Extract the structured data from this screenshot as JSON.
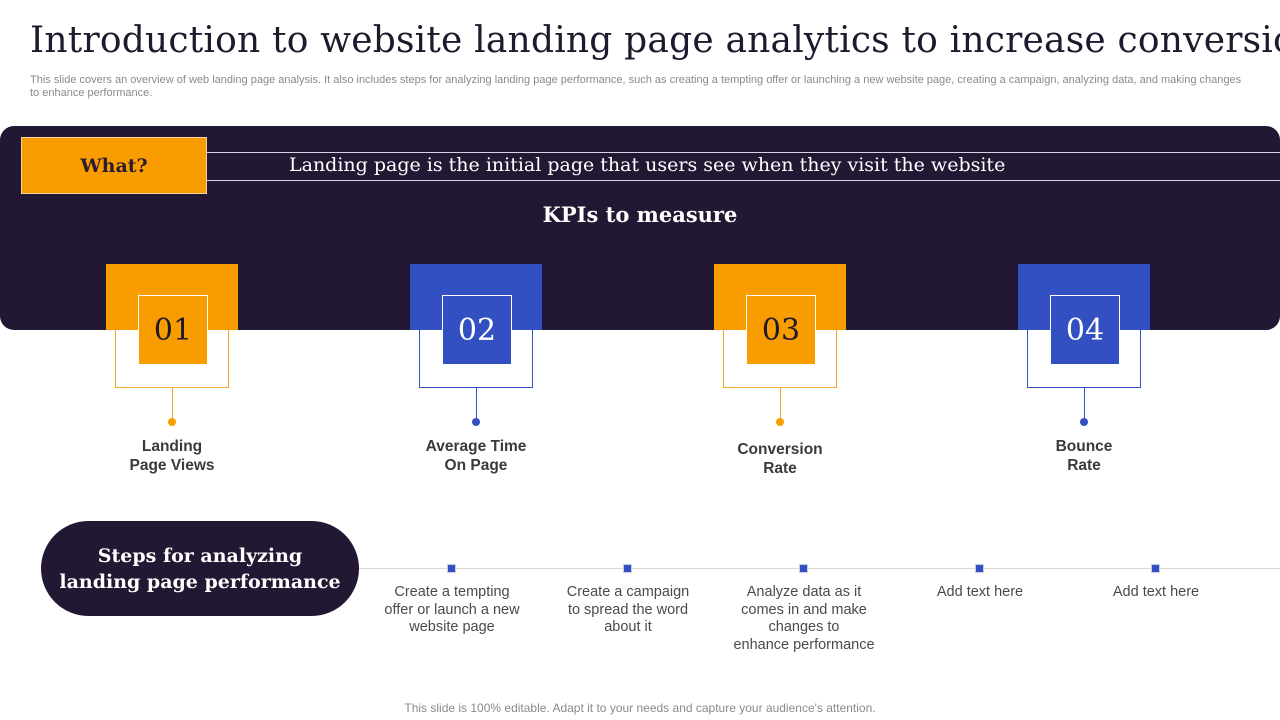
{
  "title": "Introduction to website landing page analytics to increase conversions",
  "subtitle": "This slide covers an overview of web landing page analysis. It also includes steps for analyzing landing page performance, such as creating a tempting offer or launching a new website page, creating a campaign, analyzing data, and making changes to enhance performance.",
  "what": {
    "label": "What?",
    "text": "Landing page is the initial page that users see when they visit the website"
  },
  "kpis": {
    "heading": "KPIs to measure",
    "items": [
      {
        "number": "01",
        "label_line1": "Landing",
        "label_line2": "Page Views"
      },
      {
        "number": "02",
        "label_line1": "Average Time",
        "label_line2": "On Page"
      },
      {
        "number": "03",
        "label_line1": "Conversion",
        "label_line2": "Rate"
      },
      {
        "number": "04",
        "label_line1": "Bounce",
        "label_line2": "Rate"
      }
    ]
  },
  "steps": {
    "heading_line1": "Steps for analyzing",
    "heading_line2": "landing page performance",
    "items": [
      {
        "line1": "Create a tempting",
        "line2": "offer or launch a new",
        "line3": "website page",
        "line4": ""
      },
      {
        "line1": "Create a campaign",
        "line2": "to spread the word",
        "line3": "about it",
        "line4": ""
      },
      {
        "line1": "Analyze data as it",
        "line2": "comes in and make",
        "line3": "changes to",
        "line4": "enhance performance"
      },
      {
        "line1": "Add text here",
        "line2": "",
        "line3": "",
        "line4": ""
      },
      {
        "line1": "Add text here",
        "line2": "",
        "line3": "",
        "line4": ""
      }
    ]
  },
  "footer": "This slide is 100% editable. Adapt it to your needs and capture your audience's attention.",
  "colors": {
    "dark_navy": "#221833",
    "orange": "#f99c00",
    "blue": "#3350c2"
  }
}
